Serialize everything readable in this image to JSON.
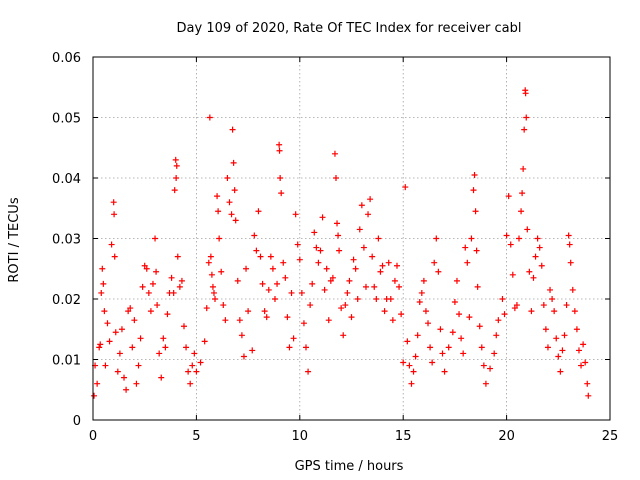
{
  "chart_data": {
    "type": "scatter",
    "title": "Day 109 of 2020, Rate Of TEC Index for receiver cabl",
    "xlabel": "GPS time / hours",
    "ylabel": "ROTI / TECUs",
    "xlim": [
      0,
      25
    ],
    "ylim": [
      0,
      0.06
    ],
    "x_ticks": [
      0,
      5,
      10,
      15,
      20,
      25
    ],
    "y_ticks": [
      0,
      0.01,
      0.02,
      0.03,
      0.04,
      0.05,
      0.06
    ],
    "x_tick_labels": [
      "0",
      "5",
      "10",
      "15",
      "20",
      "25"
    ],
    "y_tick_labels": [
      "0",
      "0.01",
      "0.02",
      "0.03",
      "0.04",
      "0.05",
      "0.06"
    ],
    "grid": true,
    "legend": "none",
    "marker": "plus",
    "color": "#ff0000",
    "points": [
      [
        0.05,
        0.004
      ],
      [
        0.1,
        0.009
      ],
      [
        0.2,
        0.006
      ],
      [
        0.3,
        0.012
      ],
      [
        0.35,
        0.0125
      ],
      [
        0.4,
        0.021
      ],
      [
        0.45,
        0.025
      ],
      [
        0.5,
        0.0225
      ],
      [
        0.55,
        0.018
      ],
      [
        0.6,
        0.009
      ],
      [
        0.7,
        0.016
      ],
      [
        0.8,
        0.013
      ],
      [
        0.9,
        0.029
      ],
      [
        1.0,
        0.036
      ],
      [
        1.02,
        0.034
      ],
      [
        1.05,
        0.027
      ],
      [
        1.1,
        0.0145
      ],
      [
        1.2,
        0.008
      ],
      [
        1.3,
        0.011
      ],
      [
        1.4,
        0.015
      ],
      [
        1.5,
        0.007
      ],
      [
        1.6,
        0.005
      ],
      [
        1.7,
        0.018
      ],
      [
        1.8,
        0.0185
      ],
      [
        1.9,
        0.012
      ],
      [
        2.0,
        0.0165
      ],
      [
        2.1,
        0.006
      ],
      [
        2.2,
        0.009
      ],
      [
        2.3,
        0.0135
      ],
      [
        2.4,
        0.022
      ],
      [
        2.5,
        0.0255
      ],
      [
        2.6,
        0.025
      ],
      [
        2.7,
        0.021
      ],
      [
        2.8,
        0.018
      ],
      [
        2.9,
        0.0225
      ],
      [
        3.0,
        0.03
      ],
      [
        3.05,
        0.0245
      ],
      [
        3.1,
        0.019
      ],
      [
        3.2,
        0.011
      ],
      [
        3.3,
        0.007
      ],
      [
        3.4,
        0.0135
      ],
      [
        3.5,
        0.012
      ],
      [
        3.6,
        0.0175
      ],
      [
        3.7,
        0.021
      ],
      [
        3.8,
        0.0235
      ],
      [
        3.9,
        0.021
      ],
      [
        3.95,
        0.038
      ],
      [
        4.0,
        0.043
      ],
      [
        4.02,
        0.04
      ],
      [
        4.05,
        0.042
      ],
      [
        4.1,
        0.027
      ],
      [
        4.2,
        0.022
      ],
      [
        4.3,
        0.023
      ],
      [
        4.4,
        0.0155
      ],
      [
        4.5,
        0.012
      ],
      [
        4.6,
        0.008
      ],
      [
        4.7,
        0.006
      ],
      [
        4.8,
        0.009
      ],
      [
        4.9,
        0.011
      ],
      [
        5.0,
        0.008
      ],
      [
        5.2,
        0.0095
      ],
      [
        5.4,
        0.013
      ],
      [
        5.5,
        0.0185
      ],
      [
        5.6,
        0.026
      ],
      [
        5.65,
        0.05
      ],
      [
        5.7,
        0.027
      ],
      [
        5.75,
        0.024
      ],
      [
        5.8,
        0.022
      ],
      [
        5.85,
        0.021
      ],
      [
        5.9,
        0.02
      ],
      [
        6.0,
        0.037
      ],
      [
        6.05,
        0.0345
      ],
      [
        6.1,
        0.03
      ],
      [
        6.2,
        0.0245
      ],
      [
        6.3,
        0.019
      ],
      [
        6.4,
        0.0165
      ],
      [
        6.5,
        0.04
      ],
      [
        6.6,
        0.036
      ],
      [
        6.7,
        0.034
      ],
      [
        6.75,
        0.048
      ],
      [
        6.8,
        0.0425
      ],
      [
        6.85,
        0.038
      ],
      [
        6.9,
        0.033
      ],
      [
        7.0,
        0.023
      ],
      [
        7.1,
        0.0165
      ],
      [
        7.2,
        0.014
      ],
      [
        7.3,
        0.0105
      ],
      [
        7.4,
        0.025
      ],
      [
        7.5,
        0.018
      ],
      [
        7.7,
        0.0115
      ],
      [
        7.8,
        0.0305
      ],
      [
        7.9,
        0.028
      ],
      [
        8.0,
        0.0345
      ],
      [
        8.1,
        0.027
      ],
      [
        8.2,
        0.0225
      ],
      [
        8.3,
        0.018
      ],
      [
        8.4,
        0.017
      ],
      [
        8.5,
        0.0215
      ],
      [
        8.6,
        0.027
      ],
      [
        8.7,
        0.025
      ],
      [
        8.8,
        0.02
      ],
      [
        8.9,
        0.0225
      ],
      [
        9.0,
        0.0455
      ],
      [
        9.02,
        0.0445
      ],
      [
        9.05,
        0.04
      ],
      [
        9.1,
        0.0375
      ],
      [
        9.2,
        0.026
      ],
      [
        9.3,
        0.0235
      ],
      [
        9.4,
        0.017
      ],
      [
        9.5,
        0.012
      ],
      [
        9.6,
        0.021
      ],
      [
        9.7,
        0.0135
      ],
      [
        9.8,
        0.034
      ],
      [
        9.9,
        0.029
      ],
      [
        10.0,
        0.0265
      ],
      [
        10.1,
        0.021
      ],
      [
        10.2,
        0.016
      ],
      [
        10.3,
        0.012
      ],
      [
        10.4,
        0.008
      ],
      [
        10.5,
        0.019
      ],
      [
        10.6,
        0.0225
      ],
      [
        10.7,
        0.031
      ],
      [
        10.8,
        0.0285
      ],
      [
        10.9,
        0.026
      ],
      [
        11.0,
        0.028
      ],
      [
        11.1,
        0.0335
      ],
      [
        11.2,
        0.0215
      ],
      [
        11.3,
        0.025
      ],
      [
        11.4,
        0.0165
      ],
      [
        11.5,
        0.023
      ],
      [
        11.6,
        0.0235
      ],
      [
        11.7,
        0.044
      ],
      [
        11.75,
        0.04
      ],
      [
        11.8,
        0.0325
      ],
      [
        11.85,
        0.0305
      ],
      [
        11.9,
        0.028
      ],
      [
        12.0,
        0.0185
      ],
      [
        12.1,
        0.014
      ],
      [
        12.2,
        0.019
      ],
      [
        12.3,
        0.021
      ],
      [
        12.4,
        0.023
      ],
      [
        12.5,
        0.017
      ],
      [
        12.6,
        0.0265
      ],
      [
        12.7,
        0.025
      ],
      [
        12.8,
        0.02
      ],
      [
        12.9,
        0.0315
      ],
      [
        13.0,
        0.0355
      ],
      [
        13.1,
        0.0285
      ],
      [
        13.2,
        0.022
      ],
      [
        13.3,
        0.034
      ],
      [
        13.4,
        0.0365
      ],
      [
        13.5,
        0.027
      ],
      [
        13.6,
        0.022
      ],
      [
        13.7,
        0.02
      ],
      [
        13.8,
        0.03
      ],
      [
        13.9,
        0.0245
      ],
      [
        14.0,
        0.0255
      ],
      [
        14.1,
        0.018
      ],
      [
        14.2,
        0.02
      ],
      [
        14.3,
        0.026
      ],
      [
        14.4,
        0.02
      ],
      [
        14.5,
        0.0165
      ],
      [
        14.6,
        0.023
      ],
      [
        14.7,
        0.0255
      ],
      [
        14.8,
        0.022
      ],
      [
        14.9,
        0.0175
      ],
      [
        15.0,
        0.0095
      ],
      [
        15.1,
        0.0385
      ],
      [
        15.2,
        0.013
      ],
      [
        15.3,
        0.009
      ],
      [
        15.4,
        0.006
      ],
      [
        15.5,
        0.008
      ],
      [
        15.6,
        0.0105
      ],
      [
        15.7,
        0.014
      ],
      [
        15.8,
        0.0195
      ],
      [
        15.9,
        0.021
      ],
      [
        16.0,
        0.023
      ],
      [
        16.1,
        0.018
      ],
      [
        16.2,
        0.016
      ],
      [
        16.3,
        0.012
      ],
      [
        16.4,
        0.0095
      ],
      [
        16.5,
        0.026
      ],
      [
        16.6,
        0.03
      ],
      [
        16.7,
        0.0245
      ],
      [
        16.8,
        0.015
      ],
      [
        16.9,
        0.011
      ],
      [
        17.0,
        0.008
      ],
      [
        17.2,
        0.012
      ],
      [
        17.4,
        0.0145
      ],
      [
        17.5,
        0.0195
      ],
      [
        17.6,
        0.023
      ],
      [
        17.7,
        0.0175
      ],
      [
        17.8,
        0.0135
      ],
      [
        17.9,
        0.011
      ],
      [
        18.0,
        0.0285
      ],
      [
        18.1,
        0.026
      ],
      [
        18.2,
        0.017
      ],
      [
        18.3,
        0.03
      ],
      [
        18.4,
        0.038
      ],
      [
        18.45,
        0.0405
      ],
      [
        18.5,
        0.0345
      ],
      [
        18.55,
        0.028
      ],
      [
        18.6,
        0.022
      ],
      [
        18.7,
        0.0155
      ],
      [
        18.8,
        0.012
      ],
      [
        18.9,
        0.009
      ],
      [
        19.0,
        0.006
      ],
      [
        19.2,
        0.0085
      ],
      [
        19.4,
        0.011
      ],
      [
        19.5,
        0.014
      ],
      [
        19.6,
        0.0165
      ],
      [
        19.8,
        0.02
      ],
      [
        19.9,
        0.0175
      ],
      [
        20.0,
        0.0305
      ],
      [
        20.1,
        0.037
      ],
      [
        20.2,
        0.029
      ],
      [
        20.3,
        0.024
      ],
      [
        20.4,
        0.0185
      ],
      [
        20.5,
        0.019
      ],
      [
        20.6,
        0.03
      ],
      [
        20.7,
        0.0345
      ],
      [
        20.75,
        0.0375
      ],
      [
        20.8,
        0.0415
      ],
      [
        20.85,
        0.048
      ],
      [
        20.9,
        0.0545
      ],
      [
        20.92,
        0.054
      ],
      [
        20.95,
        0.05
      ],
      [
        21.0,
        0.0315
      ],
      [
        21.1,
        0.0245
      ],
      [
        21.2,
        0.018
      ],
      [
        21.3,
        0.0235
      ],
      [
        21.4,
        0.027
      ],
      [
        21.5,
        0.03
      ],
      [
        21.6,
        0.0285
      ],
      [
        21.7,
        0.0255
      ],
      [
        21.8,
        0.019
      ],
      [
        21.9,
        0.015
      ],
      [
        22.0,
        0.012
      ],
      [
        22.1,
        0.0215
      ],
      [
        22.2,
        0.02
      ],
      [
        22.3,
        0.018
      ],
      [
        22.4,
        0.0135
      ],
      [
        22.5,
        0.0105
      ],
      [
        22.6,
        0.008
      ],
      [
        22.7,
        0.0115
      ],
      [
        22.8,
        0.014
      ],
      [
        22.9,
        0.019
      ],
      [
        23.0,
        0.0305
      ],
      [
        23.05,
        0.029
      ],
      [
        23.1,
        0.026
      ],
      [
        23.2,
        0.0215
      ],
      [
        23.3,
        0.018
      ],
      [
        23.4,
        0.015
      ],
      [
        23.5,
        0.0115
      ],
      [
        23.6,
        0.009
      ],
      [
        23.7,
        0.0125
      ],
      [
        23.8,
        0.0095
      ],
      [
        23.9,
        0.006
      ],
      [
        23.95,
        0.004
      ]
    ]
  }
}
